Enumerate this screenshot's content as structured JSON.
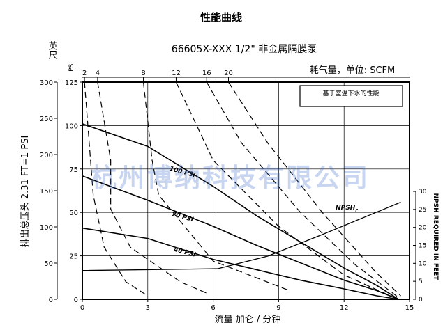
{
  "chart_data": {
    "type": "line",
    "title": "性能曲线",
    "subtitle": "66605X-XXX 1/2\" 非金属隔膜泵",
    "air_label": "耗气量，单位: SCFM",
    "note": "基于室温下水的性能",
    "watermark": "杭州博纳科技有限公司",
    "xlabel": "流量 加仑 / 分钟",
    "ylabel": "排出总压头 2.31 FT=1 PSI",
    "feet_axis_label": "英尺",
    "psi_axis_label": "PSI",
    "npsh_axis_label": "NPSH REQUIRED IN FEET",
    "xlim": [
      0,
      15
    ],
    "psi_lim": [
      0,
      125
    ],
    "feet_lim": [
      0,
      300
    ],
    "npsh_lim": [
      0,
      30
    ],
    "x_ticks": [
      0,
      3,
      6,
      9,
      12,
      15
    ],
    "psi_ticks": [
      0,
      25,
      50,
      75,
      100,
      125
    ],
    "feet_ticks": [
      0,
      50,
      100,
      150,
      200,
      250,
      300
    ],
    "npsh_ticks": [
      0,
      5,
      10,
      15,
      20,
      25,
      30
    ],
    "top_ticks": [
      "2",
      "4",
      "8",
      "12",
      "16",
      "20"
    ],
    "grid": true,
    "series": [
      {
        "name": "100 PSI",
        "kind": "pressure",
        "x": [
          0,
          3,
          6,
          8,
          10,
          12,
          13.5,
          14.5
        ],
        "y": [
          101,
          88,
          65,
          48,
          33,
          18,
          8,
          0
        ]
      },
      {
        "name": "70 PSI",
        "kind": "pressure",
        "x": [
          0,
          3,
          6,
          8,
          10,
          12,
          13.5,
          14.5
        ],
        "y": [
          71,
          57,
          42,
          31,
          21,
          11,
          5,
          0
        ]
      },
      {
        "name": "40 PSI",
        "kind": "pressure",
        "x": [
          0,
          3,
          6,
          8,
          10,
          12,
          13.5,
          14.5
        ],
        "y": [
          41,
          35,
          23,
          17,
          11,
          6,
          2,
          0
        ]
      },
      {
        "name": "2",
        "kind": "air",
        "x": [
          0.1,
          0.5,
          1.0,
          2.0,
          3.0
        ],
        "y": [
          125,
          60,
          30,
          10,
          2
        ]
      },
      {
        "name": "4",
        "kind": "air",
        "x": [
          0.7,
          1.3,
          1.3,
          2.2,
          4.5,
          5.8
        ],
        "y": [
          125,
          80,
          52,
          30,
          10,
          3
        ]
      },
      {
        "name": "8",
        "kind": "air",
        "x": [
          2.8,
          3.2,
          3.5,
          6.0,
          9.5
        ],
        "y": [
          125,
          80,
          60,
          22,
          5
        ]
      },
      {
        "name": "12",
        "kind": "air",
        "x": [
          4.3,
          6.0,
          9.0,
          12.0,
          14.3
        ],
        "y": [
          125,
          80,
          42,
          14,
          1
        ]
      },
      {
        "name": "16",
        "kind": "air",
        "x": [
          5.7,
          7.3,
          10.0,
          12.5,
          14.5
        ],
        "y": [
          125,
          90,
          50,
          20,
          1
        ]
      },
      {
        "name": "20",
        "kind": "air",
        "x": [
          6.7,
          8.5,
          11.0,
          13.5,
          14.6
        ],
        "y": [
          125,
          90,
          50,
          15,
          2
        ]
      },
      {
        "name": "NPSH_r",
        "kind": "npsh",
        "x": [
          0,
          6.2,
          8.5,
          11,
          13,
          14.6
        ],
        "y_feet": [
          8,
          8.5,
          12,
          18,
          23,
          27
        ]
      }
    ]
  }
}
